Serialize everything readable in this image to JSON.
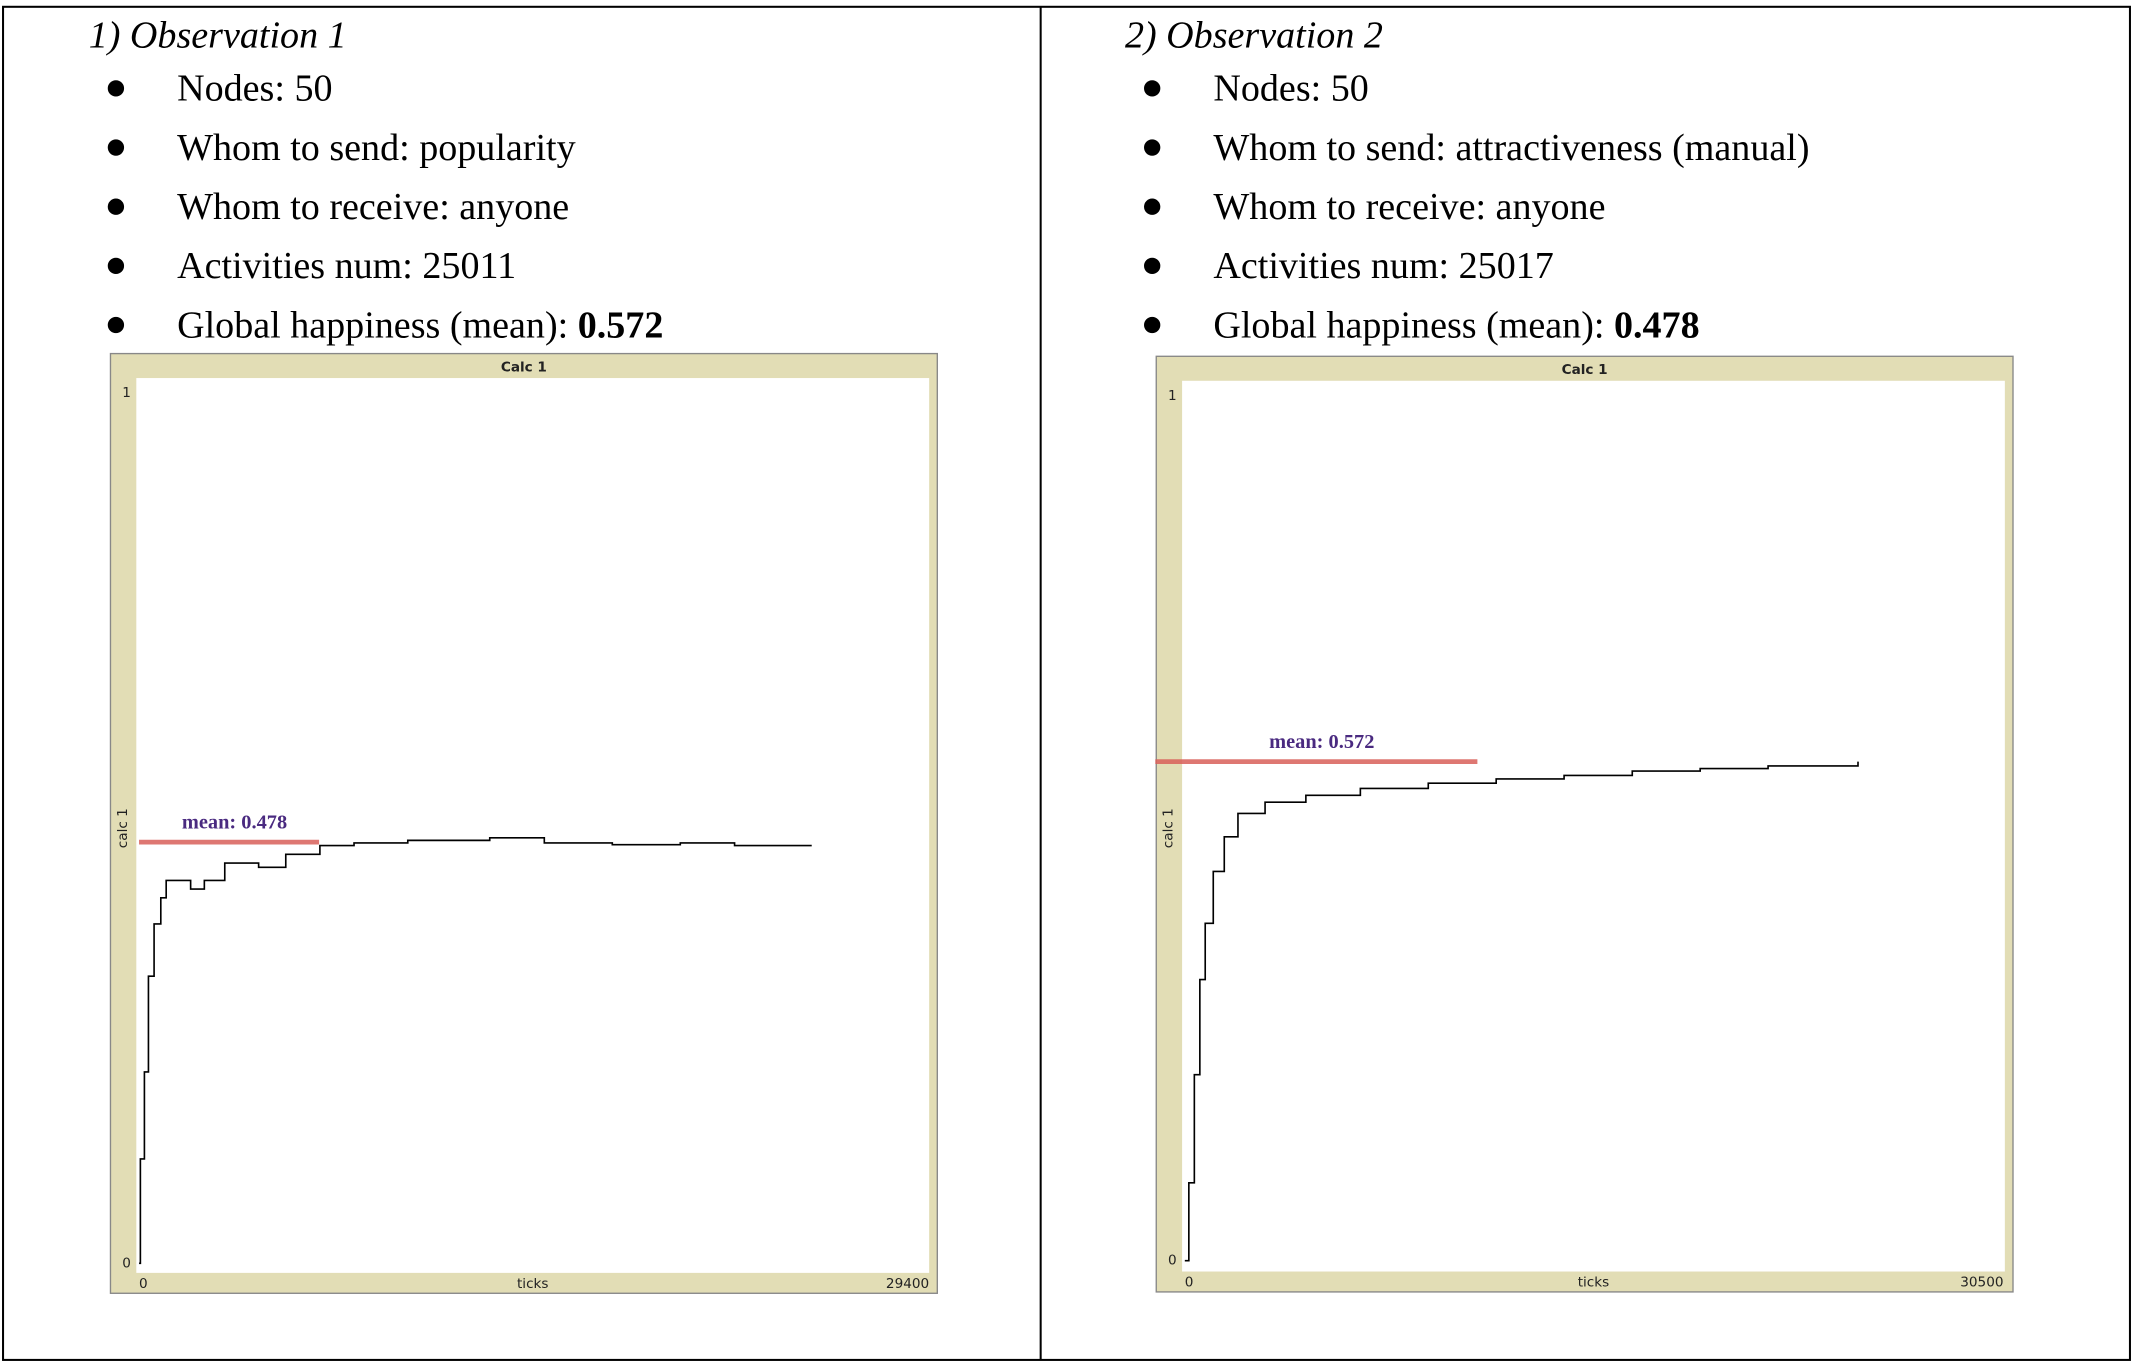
{
  "observations": [
    {
      "heading": "1)  Observation 1",
      "items": [
        {
          "label": "Nodes:",
          "value": 50
        },
        {
          "label": "Whom to send:",
          "value": "popularity"
        },
        {
          "label": "Whom to receive:",
          "value": "anyone"
        },
        {
          "label": "Activities num:",
          "value": 25011
        },
        {
          "label": "Global happiness (mean):",
          "value": 0.572
        }
      ]
    },
    {
      "heading": "2)  Observation 2",
      "items": [
        {
          "label": "Nodes:",
          "value": 50
        },
        {
          "label": "Whom to send:",
          "value": "attractiveness (manual)"
        },
        {
          "label": "Whom to receive:",
          "value": "anyone"
        },
        {
          "label": "Activities num:",
          "value": 25017
        },
        {
          "label": "Global happiness (mean):",
          "value": 0.478
        }
      ]
    }
  ],
  "chart_data": [
    {
      "type": "line",
      "title": "Calc 1",
      "y_label": "calc 1",
      "x_label": "ticks",
      "xlim": [
        0,
        29400
      ],
      "ylim": [
        0,
        1
      ],
      "xticks": [
        0,
        29400
      ],
      "yticks": [
        0,
        1
      ],
      "series": [
        {
          "color": "#000000",
          "x": [
            0,
            50,
            200,
            350,
            560,
            810,
            1010,
            1420,
            1920,
            2430,
            3190,
            4450,
            5460,
            6730,
            8000,
            10000,
            13050,
            15080,
            17610,
            20140,
            22160,
            25000
          ],
          "values": [
            0,
            0.12,
            0.22,
            0.33,
            0.39,
            0.42,
            0.44,
            0.44,
            0.43,
            0.44,
            0.46,
            0.455,
            0.47,
            0.48,
            0.483,
            0.486,
            0.489,
            0.483,
            0.481,
            0.483,
            0.48,
            0.481
          ]
        }
      ],
      "annotation": {
        "text": "mean: 0.478",
        "color": "#4a2a80",
        "line_color": "#d9605a",
        "y": 0.484,
        "x": [
          0,
          6700
        ]
      }
    },
    {
      "type": "line",
      "title": "Calc 1",
      "y_label": "calc 1",
      "x_label": "ticks",
      "xlim": [
        0,
        30500
      ],
      "ylim": [
        0,
        1
      ],
      "xticks": [
        0,
        30500
      ],
      "yticks": [
        0,
        1
      ],
      "series": [
        {
          "color": "#000000",
          "x": [
            0,
            150,
            355,
            560,
            760,
            1060,
            1470,
            1980,
            2990,
            4510,
            6540,
            9070,
            11600,
            14130,
            16670,
            19200,
            21730,
            25080
          ],
          "values": [
            0,
            0.09,
            0.215,
            0.325,
            0.39,
            0.45,
            0.49,
            0.517,
            0.53,
            0.538,
            0.546,
            0.552,
            0.557,
            0.561,
            0.566,
            0.569,
            0.572,
            0.577
          ]
        }
      ],
      "annotation": {
        "text": "mean: 0.572",
        "color": "#4a2a80",
        "line_color": "#d9605a",
        "y": 0.577,
        "x": [
          -1100,
          10900
        ]
      }
    }
  ]
}
